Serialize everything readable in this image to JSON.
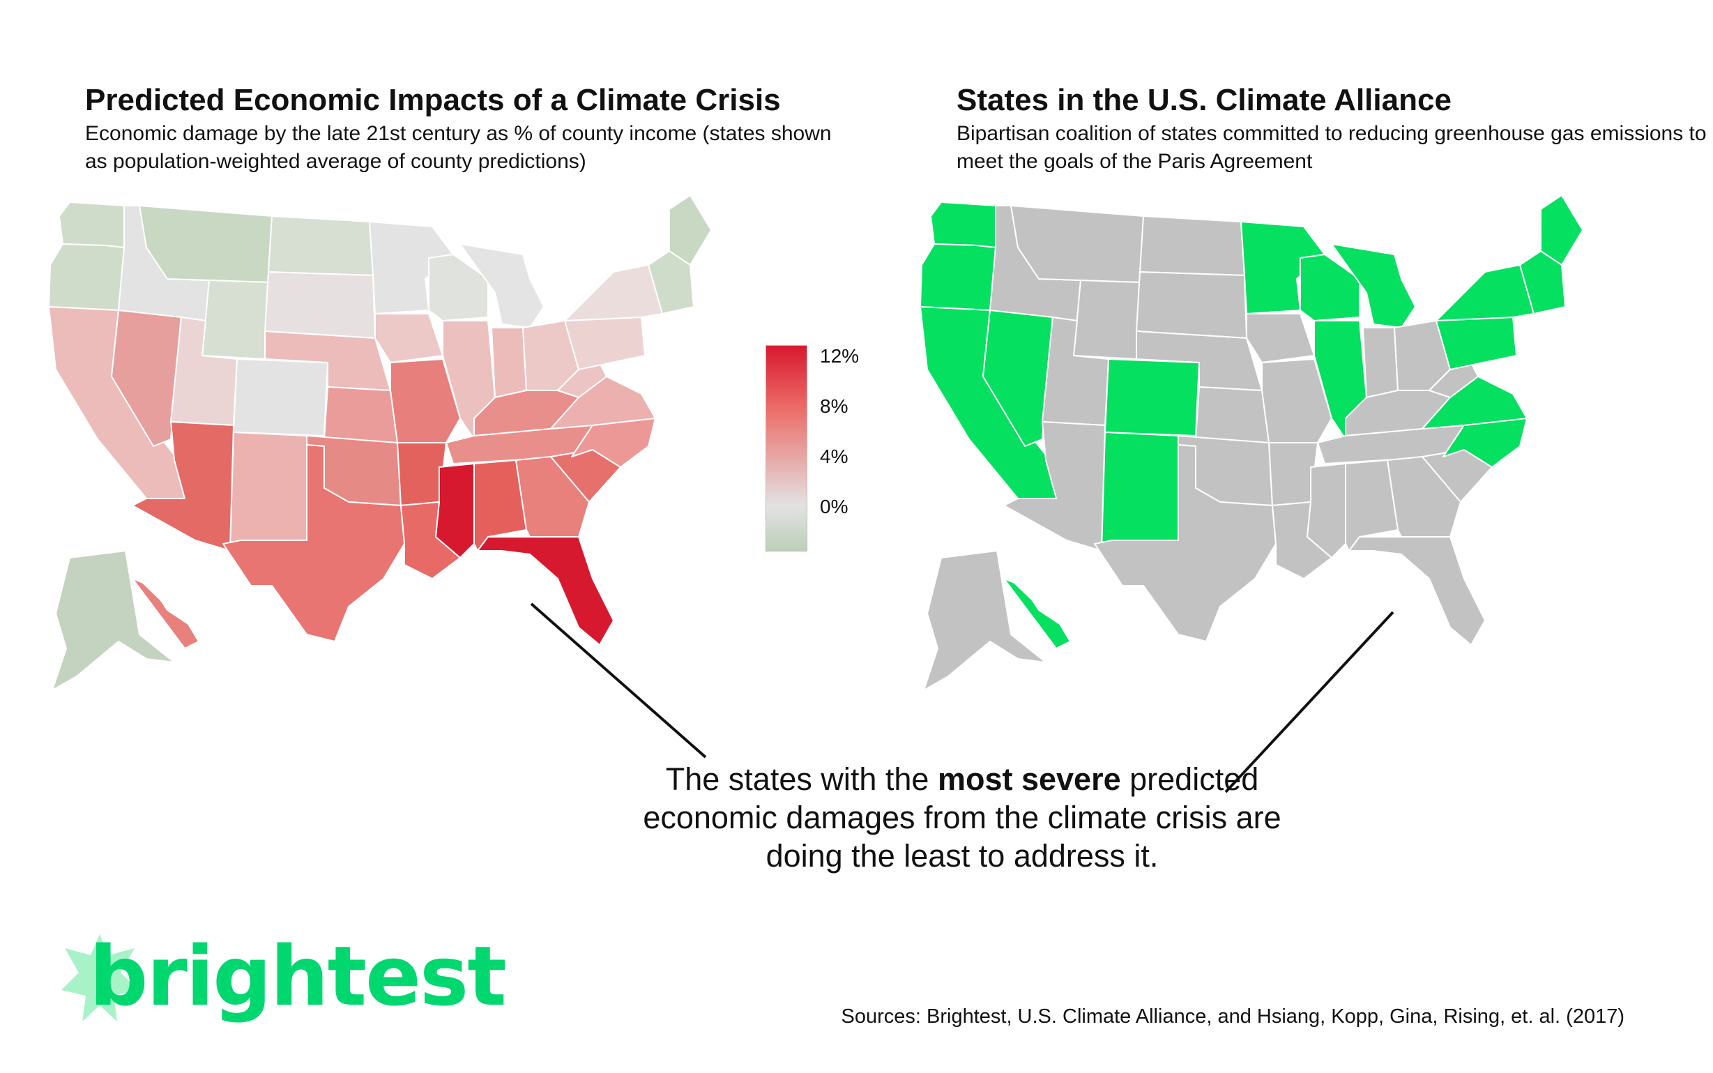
{
  "left_panel": {
    "title": "Predicted Economic Impacts of a Climate Crisis",
    "subtitle": "Economic damage by the late 21st century as % of county income (states shown as population-weighted average of county predictions)",
    "legend": {
      "labels": [
        "12%",
        "8%",
        "4%",
        "0%"
      ],
      "colors": [
        "#d7192f",
        "#ec6b68",
        "#e6a9a7",
        "#e3e3e3",
        "#bccfb8"
      ]
    }
  },
  "right_panel": {
    "title": "States in the U.S. Climate Alliance",
    "subtitle": "Bipartisan coalition of states committed to reducing greenhouse gas emissions to meet the goals of the Paris Agreement",
    "colors": {
      "member": "#05e060",
      "non_member": "#c2c2c2"
    }
  },
  "callout": {
    "before": "The states with the ",
    "bold": "most severe",
    "after": " predicted economic damages from the climate crisis are doing the least to address it."
  },
  "logo": {
    "text": "brightest",
    "color": "#00d76e"
  },
  "sources": "Sources: Brightest, U.S. Climate Alliance, and Hsiang, Kopp, Gina, Rising, et. al. (2017)",
  "chart_data": {
    "type": "choropleth",
    "damage_color_by_state": {
      "WA": "#cfdcc9",
      "OR": "#cfdcc9",
      "CA": "#ecbcba",
      "NV": "#e69f9c",
      "ID": "#e3e3e3",
      "MT": "#c8d8c3",
      "WY": "#d6dfd2",
      "UT": "#ebd5d4",
      "CO": "#e3e3e3",
      "AZ": "#e46a66",
      "NM": "#ebb2b0",
      "ND": "#d6dfd2",
      "SD": "#e6e0e0",
      "NE": "#ecbcba",
      "KS": "#e99c99",
      "OK": "#e68a86",
      "TX": "#e87571",
      "MN": "#e3e3e3",
      "IA": "#ecc8c7",
      "MO": "#e7807c",
      "AR": "#e3625e",
      "LA": "#e86a66",
      "WI": "#dfe2dd",
      "IL": "#ecc0bf",
      "MI": "#e4e4e4",
      "IN": "#ecbcba",
      "OH": "#ecc8c7",
      "KY": "#e98f8b",
      "TN": "#e98f8b",
      "MS": "#d7192f",
      "AL": "#e55f5b",
      "GA": "#e8807c",
      "FL": "#d7192f",
      "SC": "#e6706c",
      "NC": "#ec9896",
      "VA": "#ecb0ae",
      "WV": "#ecc4c3",
      "PA": "#ecd3d2",
      "NY": "#ecdddd",
      "ME": "#c8d8c3",
      "NE_states": "#cfdcc9",
      "AK": "#c3d3bf",
      "HI": "#e8807c"
    },
    "climate_alliance_members": [
      "WA",
      "OR",
      "CA",
      "NV",
      "CO",
      "NM",
      "MN",
      "WI",
      "IL",
      "MI",
      "NY",
      "PA",
      "NJ",
      "DE",
      "MD",
      "VA",
      "NC",
      "VT",
      "NH",
      "ME",
      "MA",
      "RI",
      "CT",
      "HI"
    ]
  }
}
